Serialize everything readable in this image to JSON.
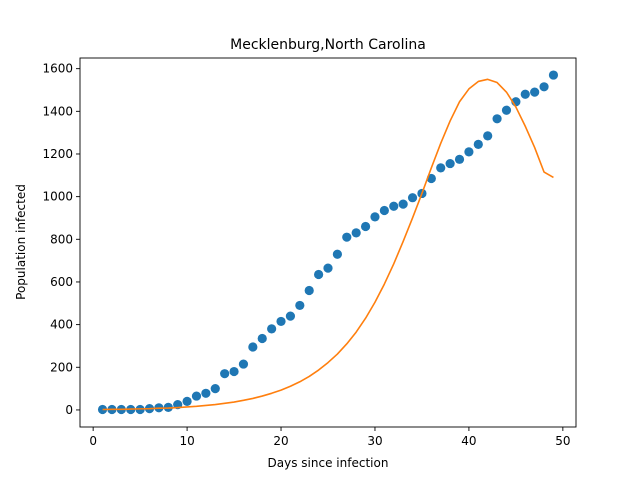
{
  "chart_data": {
    "type": "scatter",
    "title": "Mecklenburg,North Carolina",
    "xlabel": "Days since infection",
    "ylabel": "Population infected",
    "xlim": [
      -1.4,
      51.4
    ],
    "ylim": [
      -80,
      1650
    ],
    "xticks": [
      0,
      10,
      20,
      30,
      40,
      50
    ],
    "yticks": [
      0,
      200,
      400,
      600,
      800,
      1000,
      1200,
      1400,
      1600
    ],
    "grid": false,
    "series": [
      {
        "kind": "scatter",
        "color": "#1f77b4",
        "x": [
          1,
          2,
          3,
          4,
          5,
          6,
          7,
          8,
          9,
          10,
          11,
          12,
          13,
          14,
          15,
          16,
          17,
          18,
          19,
          20,
          21,
          22,
          23,
          24,
          25,
          26,
          27,
          28,
          29,
          30,
          31,
          32,
          33,
          34,
          35,
          36,
          37,
          38,
          39,
          40,
          41,
          42,
          43,
          44,
          45,
          46,
          47,
          48,
          49
        ],
        "y": [
          2,
          2,
          2,
          2,
          2,
          6,
          10,
          12,
          25,
          40,
          65,
          78,
          100,
          170,
          180,
          215,
          295,
          335,
          380,
          415,
          440,
          490,
          560,
          635,
          665,
          730,
          810,
          830,
          860,
          905,
          935,
          955,
          965,
          995,
          1015,
          1085,
          1135,
          1155,
          1175,
          1210,
          1245,
          1285,
          1365,
          1405,
          1445,
          1480,
          1490,
          1515,
          1570
        ]
      },
      {
        "kind": "line",
        "color": "#ff7f0e",
        "x": [
          1,
          2,
          3,
          4,
          5,
          6,
          7,
          8,
          9,
          10,
          11,
          12,
          13,
          14,
          15,
          16,
          17,
          18,
          19,
          20,
          21,
          22,
          23,
          24,
          25,
          26,
          27,
          28,
          29,
          30,
          31,
          32,
          33,
          34,
          35,
          36,
          37,
          38,
          39,
          40,
          41,
          42,
          43,
          44,
          45,
          46,
          47,
          48,
          49
        ],
        "y": [
          2,
          3,
          3,
          4,
          5,
          6,
          8,
          9,
          11,
          14,
          17,
          21,
          25,
          31,
          37,
          45,
          54,
          65,
          78,
          93,
          111,
          132,
          157,
          187,
          222,
          262,
          310,
          365,
          430,
          505,
          590,
          685,
          790,
          900,
          1015,
          1135,
          1250,
          1355,
          1445,
          1505,
          1540,
          1550,
          1535,
          1490,
          1420,
          1330,
          1230,
          1115,
          1090
        ]
      }
    ]
  }
}
